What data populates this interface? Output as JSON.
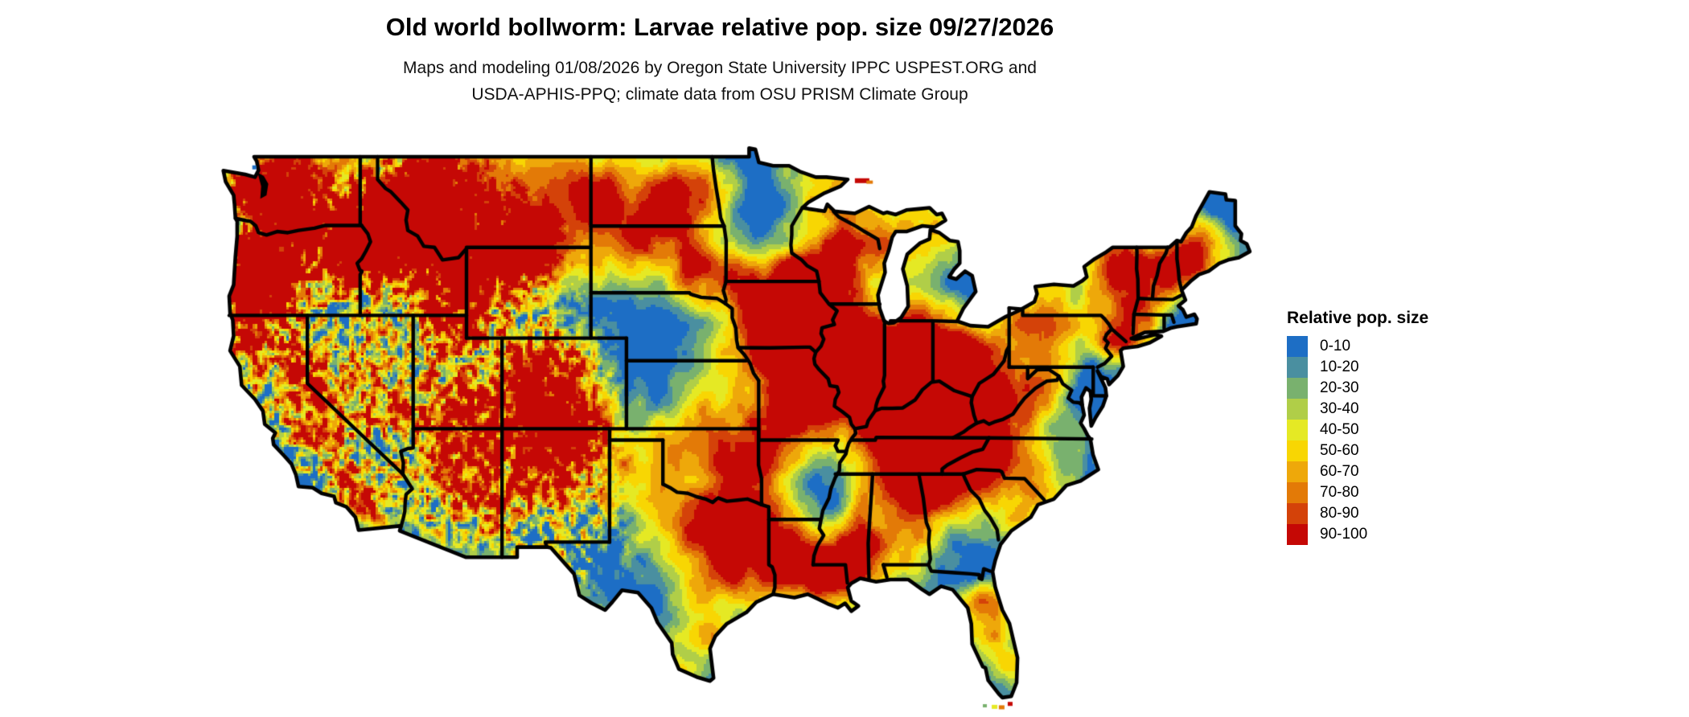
{
  "header": {
    "title": "Old world bollworm: Larvae relative pop. size 09/27/2026",
    "subtitle_line1": "Maps and modeling 01/08/2026 by Oregon State University IPPC USPEST.ORG and",
    "subtitle_line2": "USDA-APHIS-PPQ; climate data from OSU PRISM Climate Group"
  },
  "legend": {
    "title": "Relative pop. size",
    "items": [
      {
        "label": "0-10",
        "color": "#1d6ec5"
      },
      {
        "label": "10-20",
        "color": "#4a8fa0"
      },
      {
        "label": "20-30",
        "color": "#79b16e"
      },
      {
        "label": "30-40",
        "color": "#b0ce48"
      },
      {
        "label": "40-50",
        "color": "#e5e924"
      },
      {
        "label": "50-60",
        "color": "#f8d603"
      },
      {
        "label": "60-70",
        "color": "#eea80a"
      },
      {
        "label": "70-80",
        "color": "#e37a07"
      },
      {
        "label": "80-90",
        "color": "#d44209"
      },
      {
        "label": "90-100",
        "color": "#c50805"
      }
    ]
  },
  "map": {
    "state_border_color": "#000000",
    "coastline_color": "#000000",
    "water_color": "#ffffff",
    "background_color": "#ffffff"
  }
}
